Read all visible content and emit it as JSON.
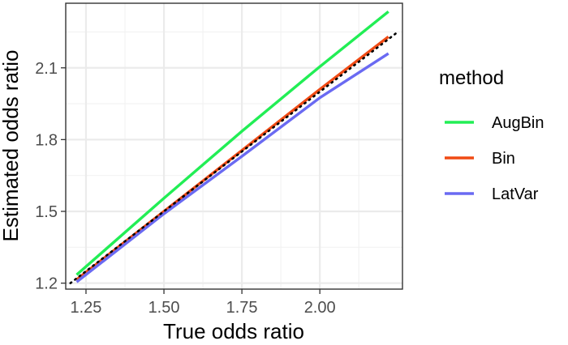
{
  "chart_data": {
    "type": "line",
    "title": "",
    "xlabel": "True odds ratio",
    "ylabel": "Estimated odds ratio",
    "xlim": [
      1.185,
      2.265
    ],
    "ylim": [
      1.175,
      2.37
    ],
    "x_ticks": [
      1.25,
      1.5,
      1.75,
      2.0
    ],
    "x_tick_labels": [
      "1.25",
      "1.50",
      "1.75",
      "2.00"
    ],
    "y_ticks": [
      1.2,
      1.5,
      1.8,
      2.1
    ],
    "y_tick_labels": [
      "1.2",
      "1.5",
      "1.8",
      "2.1"
    ],
    "grid": true,
    "legend": {
      "title": "method",
      "position": "right"
    },
    "series": [
      {
        "name": "AugBin",
        "color": "#22EE55",
        "x": [
          1.22,
          1.5,
          1.75,
          2.0,
          2.22
        ],
        "y": [
          1.235,
          1.555,
          1.835,
          2.105,
          2.335
        ]
      },
      {
        "name": "Bin",
        "color": "#F04A14",
        "x": [
          1.22,
          1.5,
          1.75,
          2.0,
          2.22
        ],
        "y": [
          1.215,
          1.5,
          1.755,
          2.01,
          2.23
        ]
      },
      {
        "name": "LatVar",
        "color": "#6A6AF2",
        "x": [
          1.22,
          1.5,
          1.75,
          2.0,
          2.22
        ],
        "y": [
          1.205,
          1.49,
          1.73,
          1.975,
          2.16
        ]
      }
    ],
    "reference_line": {
      "style": "dotted",
      "color": "#000000",
      "x": [
        1.2,
        2.25
      ],
      "y": [
        1.2,
        2.25
      ]
    }
  }
}
